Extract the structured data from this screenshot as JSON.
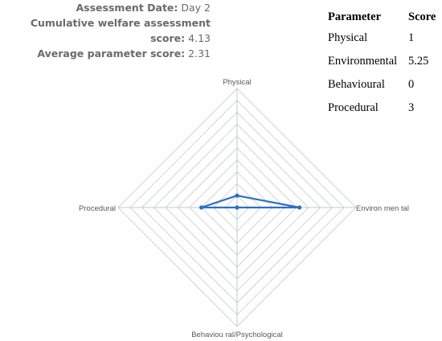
{
  "header": {
    "date_label": "Assessment Date:",
    "date_value": "Day 2",
    "cumulative_label": "Cumulative welfare assessment score:",
    "cumulative_value": "4.13",
    "average_label": "Average parameter score:",
    "average_value": "2.31"
  },
  "table": {
    "headers": [
      "Parameter",
      "Score"
    ],
    "rows": [
      {
        "parameter": "Physical",
        "score": "1"
      },
      {
        "parameter": "Environmental",
        "score": "5.25"
      },
      {
        "parameter": "Behavioural",
        "score": "0"
      },
      {
        "parameter": "Procedural",
        "score": "3"
      }
    ]
  },
  "chart_data": {
    "type": "radar",
    "axes": [
      "Physical",
      "Environmental",
      "Behavioural/Psychological",
      "Procedural"
    ],
    "axis_labels": [
      "Physical",
      "Environ men tal",
      "Behaviou ral/Psychological",
      "Procedural"
    ],
    "series": [
      {
        "values": [
          1,
          5.25,
          0,
          3
        ],
        "color": "#2e6fc4"
      }
    ],
    "range": [
      0,
      10
    ],
    "grid_rings": 10,
    "grid_color": "#c8c8c8",
    "legend": "none"
  }
}
